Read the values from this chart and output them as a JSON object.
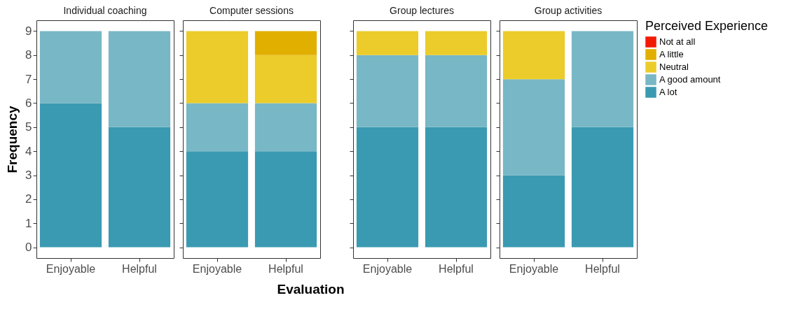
{
  "chart_data": [
    {
      "type": "bar",
      "stacked": true,
      "title": "Individual coaching",
      "ylabel": "Frequency",
      "categories": [
        "Enjoyable",
        "Helpful"
      ],
      "ylim": [
        -0.45,
        9.45
      ],
      "yticks": [
        0,
        1,
        2,
        3,
        4,
        5,
        6,
        7,
        8,
        9
      ],
      "grid": false,
      "series": [
        {
          "color": "#3a9ab2",
          "values": [
            6,
            5
          ]
        },
        {
          "color": "#78b7c5",
          "values": [
            3,
            4
          ]
        },
        {
          "color": "#ebcc2a",
          "values": [
            0,
            0
          ]
        },
        {
          "color": "#e1af00",
          "values": [
            0,
            0
          ]
        },
        {
          "color": "#f21a00",
          "values": [
            0,
            0
          ]
        }
      ]
    },
    {
      "type": "bar",
      "stacked": true,
      "title": "Computer sessions",
      "xlabel": "Evaluation",
      "categories": [
        "Enjoyable",
        "Helpful"
      ],
      "ylim": [
        -0.45,
        9.45
      ],
      "yticks": [
        0,
        1,
        2,
        3,
        4,
        5,
        6,
        7,
        8,
        9
      ],
      "tick_labels": "x",
      "grid": false,
      "series": [
        {
          "color": "#3a9ab2",
          "values": [
            4,
            4
          ]
        },
        {
          "color": "#78b7c5",
          "values": [
            2,
            2
          ]
        },
        {
          "color": "#ebcc2a",
          "values": [
            3,
            2
          ]
        },
        {
          "color": "#e1af00",
          "values": [
            0,
            1
          ]
        },
        {
          "color": "#f21a00",
          "values": [
            0,
            0
          ]
        }
      ]
    },
    {
      "type": "bar",
      "stacked": true,
      "title": "Group lectures",
      "categories": [
        "Enjoyable",
        "Helpful"
      ],
      "ylim": [
        -0.45,
        9.45
      ],
      "yticks": [
        0,
        1,
        2,
        3,
        4,
        5,
        6,
        7,
        8,
        9
      ],
      "tick_labels": "x",
      "grid": false,
      "series": [
        {
          "color": "#3a9ab2",
          "values": [
            5,
            5
          ]
        },
        {
          "color": "#78b7c5",
          "values": [
            3,
            3
          ]
        },
        {
          "color": "#ebcc2a",
          "values": [
            1,
            1
          ]
        },
        {
          "color": "#e1af00",
          "values": [
            0,
            0
          ]
        },
        {
          "color": "#f21a00",
          "values": [
            0,
            0
          ]
        }
      ]
    },
    {
      "type": "bar",
      "stacked": true,
      "title": "Group activities",
      "categories": [
        "Enjoyable",
        "Helpful"
      ],
      "ylim": [
        -0.45,
        9.45
      ],
      "yticks": [
        0,
        1,
        2,
        3,
        4,
        5,
        6,
        7,
        8,
        9
      ],
      "tick_labels": "x",
      "grid": false,
      "legend": "right",
      "legend_title": "Perceived Experience",
      "series": [
        {
          "name": "A lot",
          "color": "#3a9ab2",
          "values": [
            3,
            5
          ]
        },
        {
          "name": "A good amount",
          "color": "#78b7c5",
          "values": [
            4,
            4
          ]
        },
        {
          "name": "Neutral",
          "color": "#ebcc2a",
          "values": [
            2,
            0
          ]
        },
        {
          "name": "A little",
          "color": "#e1af00",
          "values": [
            0,
            0
          ]
        },
        {
          "name": "Not at all",
          "color": "#f21a00",
          "values": [
            0,
            0
          ]
        }
      ]
    }
  ]
}
